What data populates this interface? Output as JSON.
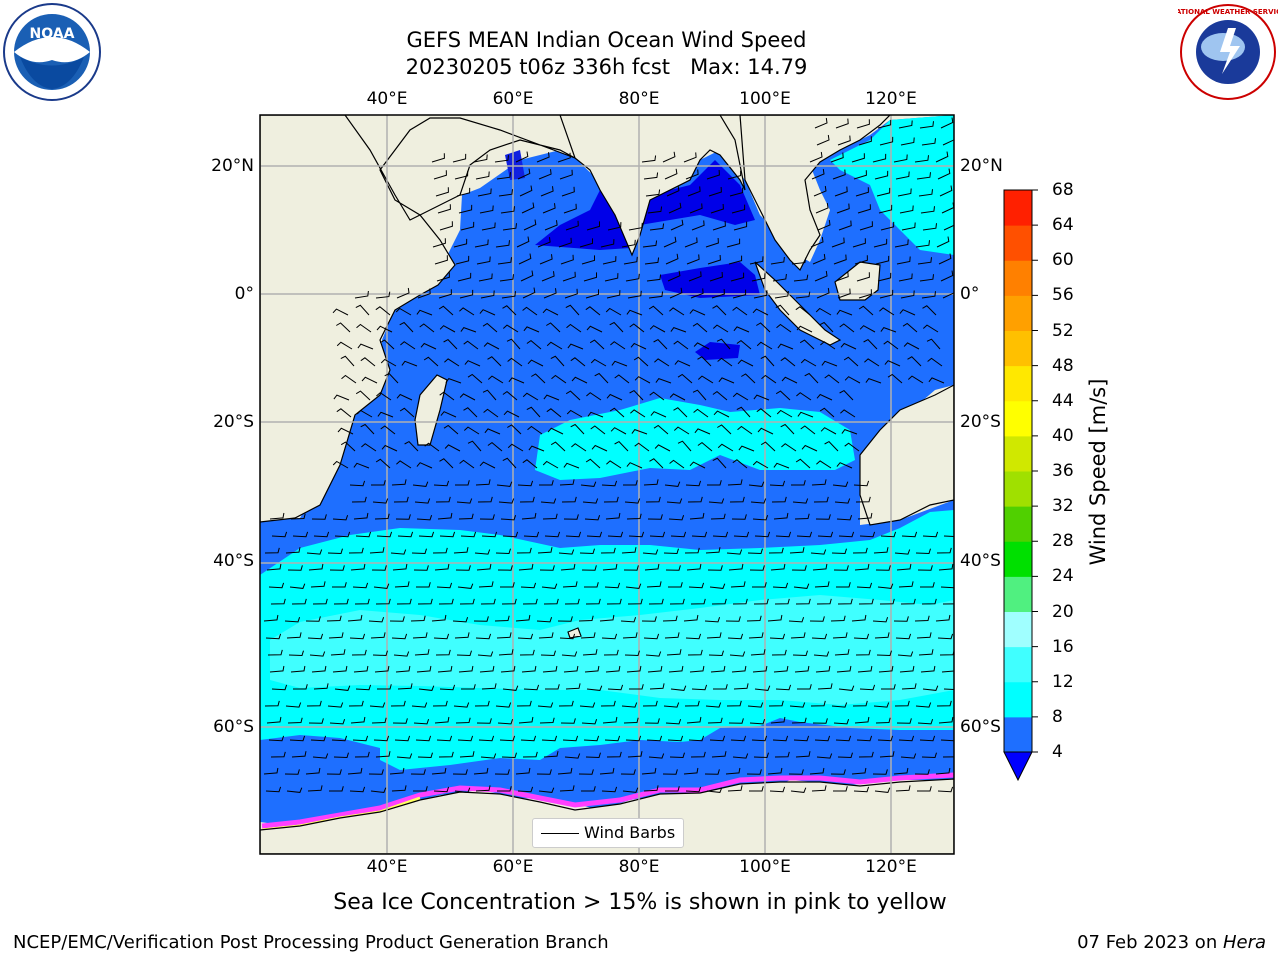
{
  "title": "GEFS MEAN Indian Ocean Wind Speed",
  "subtitle": "20230205 t06z 336h fcst   Max: 14.79",
  "lon_ticks": [
    "40°E",
    "60°E",
    "80°E",
    "100°E",
    "120°E"
  ],
  "lat_ticks_left": [
    "20°N",
    "0°",
    "20°S",
    "40°S",
    "60°S"
  ],
  "lat_ticks_right": [
    "20°N",
    "0°",
    "20°S",
    "40°S",
    "60°S"
  ],
  "colorbar": {
    "title": "Wind Speed [m/s]",
    "ticks": [
      "4",
      "8",
      "12",
      "16",
      "20",
      "24",
      "28",
      "32",
      "36",
      "40",
      "44",
      "48",
      "52",
      "56",
      "60",
      "64",
      "68"
    ],
    "colors": [
      "#1e6fff",
      "#00ffff",
      "#40ffff",
      "#a0ffff",
      "#50f080",
      "#00e000",
      "#50d000",
      "#a0e000",
      "#d0e800",
      "#ffff00",
      "#ffe800",
      "#ffc000",
      "#ffa000",
      "#ff8000",
      "#ff5000",
      "#ff2000",
      "#ff0000"
    ],
    "under_color": "#0000ff"
  },
  "legend": {
    "label": "Wind Barbs"
  },
  "footnote": "Sea Ice Concentration > 15% is shown in pink to yellow",
  "credit_left": "NCEP/EMC/Verification Post Processing Product Generation Branch",
  "credit_right_date": "07 Feb 2023 on ",
  "credit_right_host": "Hera",
  "logos": {
    "left": "NOAA",
    "right": "NATIONAL WEATHER SERVICE"
  }
}
